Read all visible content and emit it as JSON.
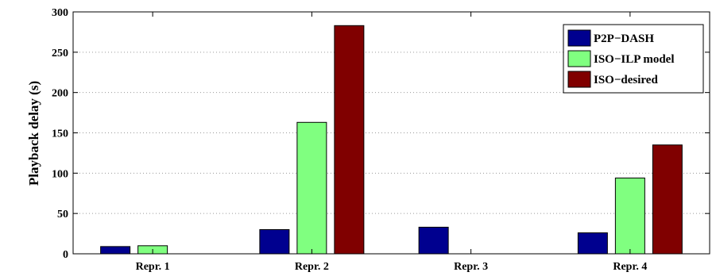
{
  "chart_data": {
    "type": "bar",
    "ylabel": "Playback delay (s)",
    "xlabel": "",
    "ylim": [
      0,
      300
    ],
    "yticks": [
      0,
      50,
      100,
      150,
      200,
      250,
      300
    ],
    "grid": true,
    "legend_position": "top-right",
    "categories": [
      "Repr. 1",
      "Repr. 2",
      "Repr. 3",
      "Repr. 4"
    ],
    "series": [
      {
        "name": "P2P−DASH",
        "color": "#00008f",
        "values": [
          9,
          30,
          33,
          26
        ]
      },
      {
        "name": "ISO−ILP model",
        "color": "#80ff80",
        "values": [
          10,
          163,
          0,
          94
        ]
      },
      {
        "name": "ISO−desired",
        "color": "#800000",
        "values": [
          0,
          283,
          0,
          135
        ]
      }
    ]
  }
}
